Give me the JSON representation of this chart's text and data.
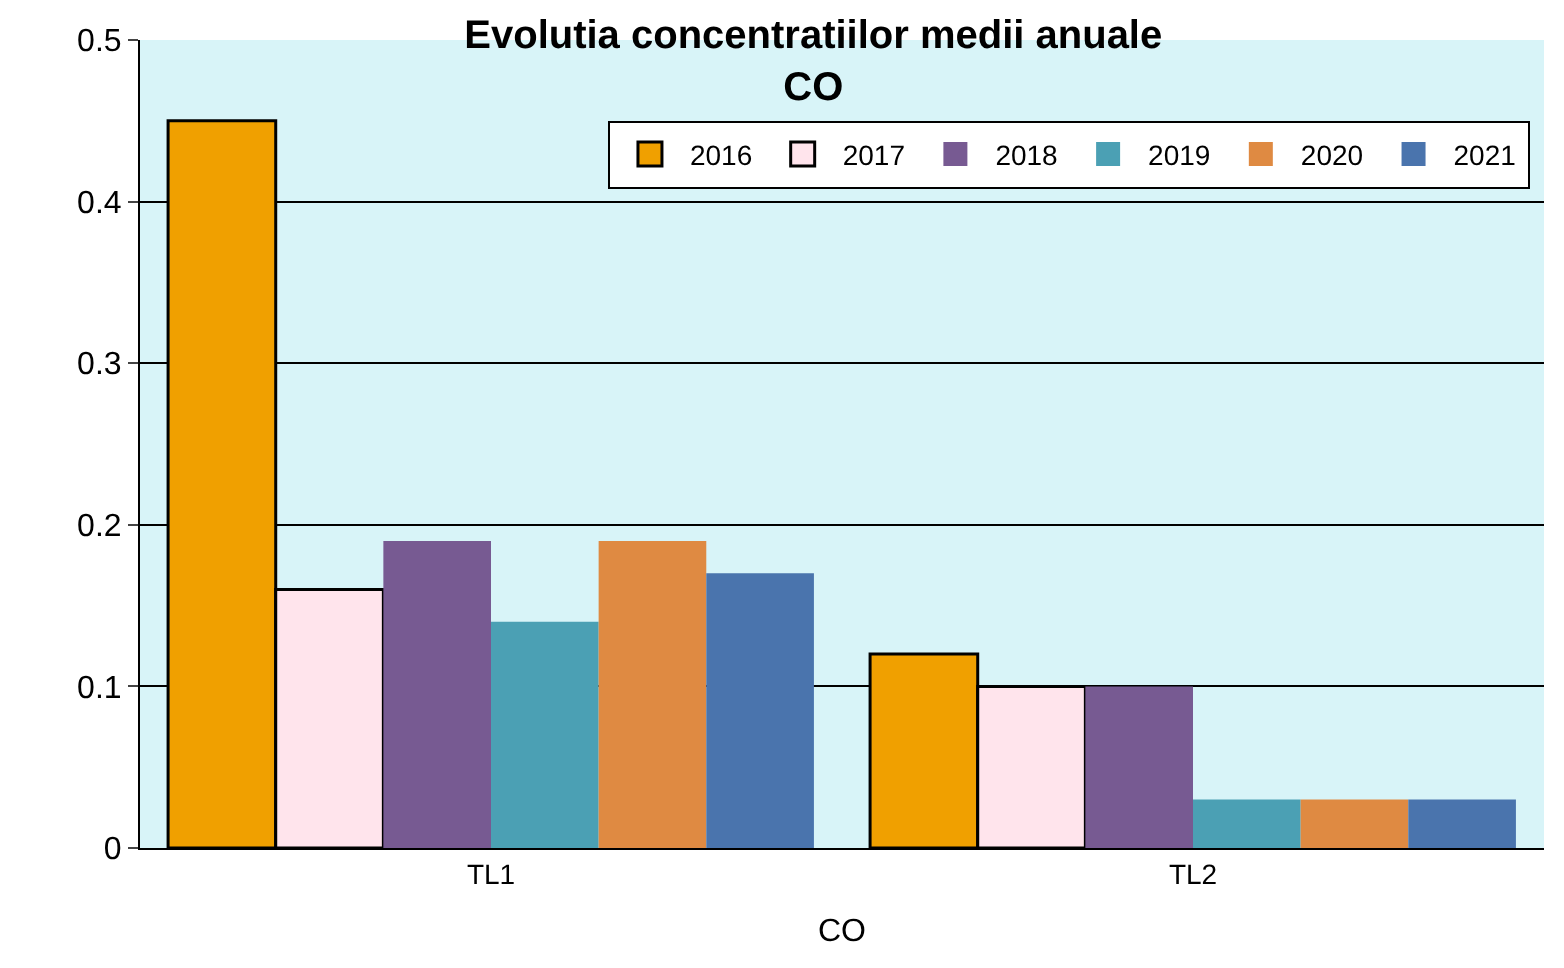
{
  "chart_data": {
    "type": "bar",
    "title": "Evolutia concentratiilor medii anuale\nCO",
    "xlabel": "CO",
    "categories": [
      "TL1",
      "TL2"
    ],
    "series": [
      {
        "name": "2016",
        "color": "#f0a000",
        "values": [
          0.45,
          0.12
        ]
      },
      {
        "name": "2017",
        "color": "#ffe4ec",
        "values": [
          0.16,
          0.1
        ]
      },
      {
        "name": "2018",
        "color": "#775a92",
        "values": [
          0.19,
          0.1
        ]
      },
      {
        "name": "2019",
        "color": "#4ba0b4",
        "values": [
          0.14,
          0.03
        ]
      },
      {
        "name": "2020",
        "color": "#df8a42",
        "values": [
          0.19,
          0.03
        ]
      },
      {
        "name": "2021",
        "color": "#4a74ad",
        "values": [
          0.17,
          0.03
        ]
      }
    ],
    "ylim": [
      0,
      0.5
    ],
    "yticks": [
      0,
      0.1,
      0.2,
      0.3,
      0.4,
      0.5
    ],
    "grid": "y",
    "legend": "top right"
  }
}
